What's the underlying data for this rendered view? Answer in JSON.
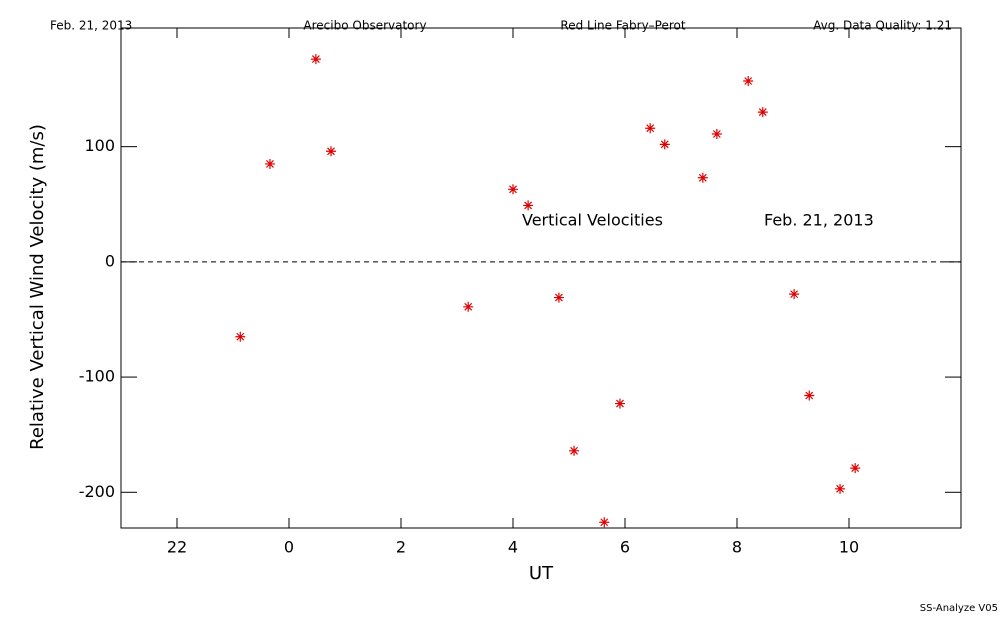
{
  "chart_data": {
    "type": "scatter",
    "header": [
      "Feb. 21, 2013",
      "Arecibo Observatory",
      "Red Line Fabry–Perot",
      "Avg. Data Quality: 1.21"
    ],
    "xlabel": "UT",
    "ylabel": "Relative Vertical Wind Velocity (m/s)",
    "annotations": [
      "Vertical Velocities",
      "Feb. 21, 2013"
    ],
    "footer": "SS-Analyze V05",
    "color": "#e00000",
    "zero_line": true,
    "xlim": [
      21,
      36
    ],
    "xticks": [
      22,
      {
        "value": 24,
        "label": "0"
      },
      {
        "value": 26,
        "label": "2"
      },
      {
        "value": 28,
        "label": "4"
      },
      {
        "value": 30,
        "label": "6"
      },
      {
        "value": 32,
        "label": "8"
      },
      {
        "value": 34,
        "label": "10"
      }
    ],
    "ylim": [
      -231,
      203
    ],
    "yticks": [
      -200,
      -100,
      0,
      100
    ],
    "x": [
      23.13,
      23.66,
      24.48,
      24.75,
      27.2,
      28.0,
      28.27,
      28.82,
      29.09,
      29.63,
      29.91,
      30.45,
      30.71,
      31.39,
      31.64,
      32.2,
      32.46,
      33.02,
      33.29,
      33.84,
      34.11
    ],
    "values": [
      -65,
      85,
      176,
      96,
      -39,
      63,
      49,
      -31,
      -164,
      -226,
      -123,
      116,
      102,
      73,
      111,
      157,
      130,
      -28,
      -116,
      -197,
      -179
    ]
  }
}
